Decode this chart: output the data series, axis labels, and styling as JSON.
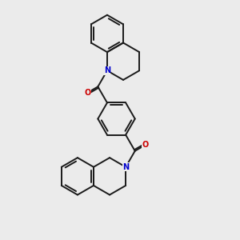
{
  "bg_color": "#ebebeb",
  "bond_color": "#1a1a1a",
  "N_color": "#0000cc",
  "O_color": "#cc0000",
  "lw": 1.4,
  "figsize": [
    3.0,
    3.0
  ],
  "dpi": 100,
  "xlim": [
    0,
    10
  ],
  "ylim": [
    0,
    10
  ]
}
